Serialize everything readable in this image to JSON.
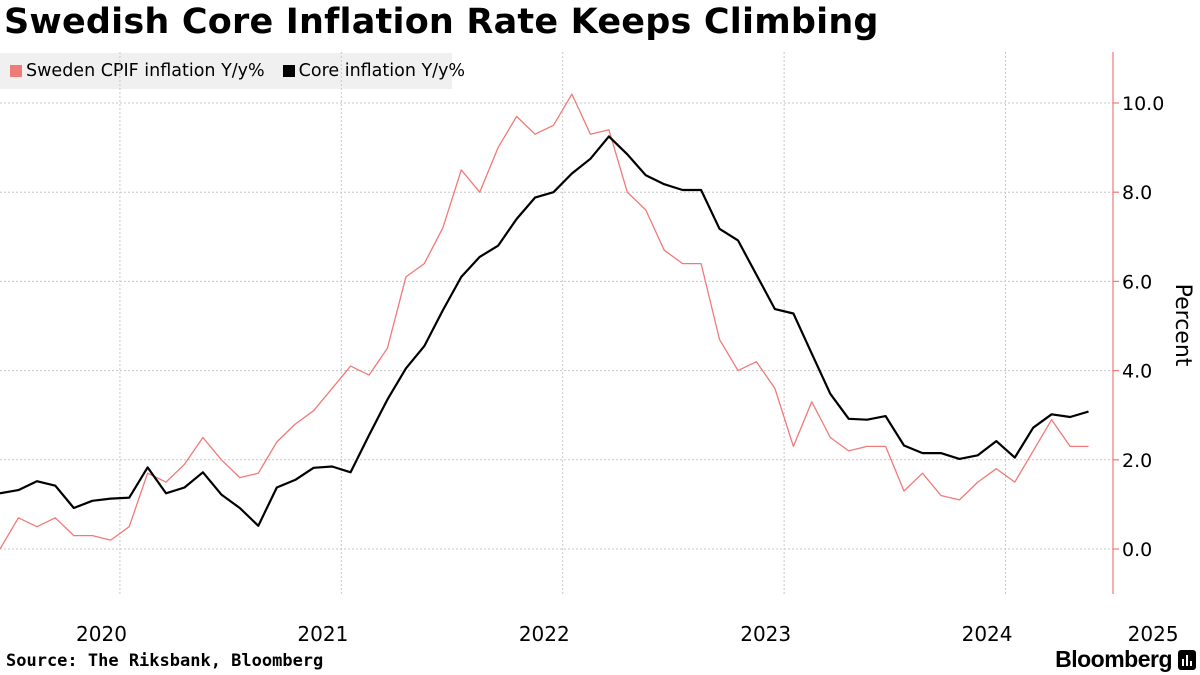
{
  "header": {
    "title": "Swedish Core Inflation Rate Keeps Climbing"
  },
  "legend": {
    "items": [
      {
        "label": "Sweden CPIF inflation Y/y%",
        "color": "#f07a78"
      },
      {
        "label": "Core inflation Y/y%",
        "color": "#000000"
      }
    ]
  },
  "footer": {
    "source": "Source: The Riksbank, Bloomberg",
    "brand": "Bloomberg",
    "brand_icon": "bloomberg-terminal-icon"
  },
  "colors": {
    "axis_accent": "#f07a78",
    "grid": "#c8c8c8"
  },
  "chart_data": {
    "type": "line",
    "title": "Swedish Core Inflation Rate Keeps Climbing",
    "xlabel": "",
    "ylabel": "Percent",
    "ylim": [
      -1.0,
      11.2
    ],
    "yticks": [
      "0.0",
      "2.0",
      "4.0",
      "6.0",
      "8.0",
      "10.0"
    ],
    "ytick_values": [
      0,
      2,
      4,
      6,
      8,
      10
    ],
    "x_start": "2020-01",
    "x_labels": [
      {
        "label": "2020",
        "month_index": 5.5
      },
      {
        "label": "2021",
        "month_index": 17.5
      },
      {
        "label": "2022",
        "month_index": 29.5
      },
      {
        "label": "2023",
        "month_index": 41.5
      },
      {
        "label": "2024",
        "month_index": 53.5
      },
      {
        "label": "2025",
        "month_index": 62.5
      }
    ],
    "gridlines_month_index": [
      6.5,
      18.5,
      30.5,
      42.5,
      54.5
    ],
    "x_range": [
      0,
      63
    ],
    "grid": true,
    "legend_position": "top-left",
    "series": [
      {
        "name": "Sweden CPIF inflation Y/y%",
        "color": "#f07a78",
        "values": [
          0.0,
          0.7,
          0.5,
          0.7,
          0.3,
          0.3,
          0.2,
          0.5,
          1.7,
          1.5,
          1.9,
          2.5,
          2.0,
          1.6,
          1.7,
          2.4,
          2.8,
          3.1,
          3.6,
          4.1,
          3.9,
          4.5,
          6.1,
          6.4,
          7.2,
          8.5,
          8.0,
          9.0,
          9.7,
          9.3,
          9.5,
          10.2,
          9.3,
          9.4,
          8.0,
          7.6,
          6.7,
          6.4,
          6.4,
          4.7,
          4.0,
          4.2,
          3.6,
          2.3,
          3.3,
          2.5,
          2.2,
          2.3,
          2.3,
          1.3,
          1.7,
          1.2,
          1.1,
          1.5,
          1.8,
          1.5,
          2.2,
          2.9,
          2.3,
          2.3
        ]
      },
      {
        "name": "Core inflation Y/y%",
        "color": "#000000",
        "values": [
          1.25,
          1.32,
          1.52,
          1.42,
          0.92,
          1.08,
          1.13,
          1.15,
          1.83,
          1.25,
          1.38,
          1.72,
          1.22,
          0.92,
          0.52,
          1.38,
          1.55,
          1.82,
          1.85,
          1.72,
          2.55,
          3.35,
          4.05,
          4.55,
          5.35,
          6.1,
          6.55,
          6.8,
          7.4,
          7.88,
          8.0,
          8.42,
          8.75,
          9.25,
          8.85,
          8.38,
          8.18,
          8.05,
          8.05,
          7.18,
          6.92,
          6.15,
          5.38,
          5.28,
          4.38,
          3.48,
          2.92,
          2.9,
          2.98,
          2.32,
          2.15,
          2.15,
          2.02,
          2.1,
          2.42,
          2.05,
          2.72,
          3.02,
          2.96,
          3.08
        ]
      }
    ]
  }
}
